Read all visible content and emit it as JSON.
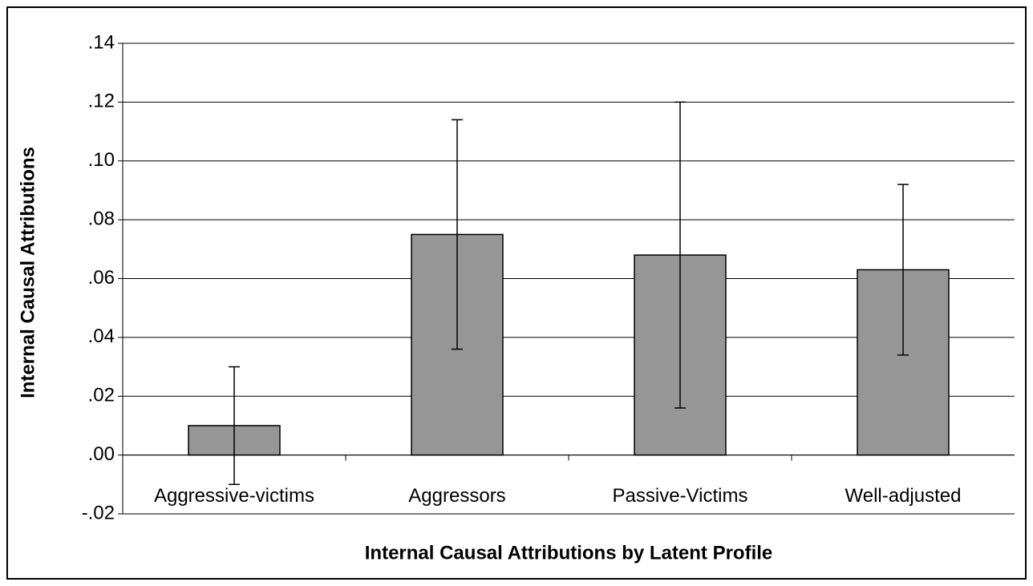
{
  "chart_data": {
    "type": "bar",
    "x_label": "Internal Causal Attributions by Latent Profile",
    "y_label": "Internal Causal Attributions",
    "categories": [
      "Aggressive-victims",
      "Aggressors",
      "Passive-Victims",
      "Well-adjusted"
    ],
    "values": [
      0.01,
      0.075,
      0.068,
      0.063
    ],
    "errors": [
      0.02,
      0.039,
      0.052,
      0.029
    ],
    "color": "#969696",
    "ylim": [
      -0.02,
      0.14
    ],
    "yticks": [
      {
        "value": -0.02,
        "label": "-.02"
      },
      {
        "value": 0,
        "label": ".00"
      },
      {
        "value": 0.02,
        "label": ".02"
      },
      {
        "value": 0.04,
        "label": ".04"
      },
      {
        "value": 0.06,
        "label": ".06"
      },
      {
        "value": 0.08,
        "label": ".08"
      },
      {
        "value": 0.1,
        "label": ".10"
      },
      {
        "value": 0.12,
        "label": ".12"
      },
      {
        "value": 0.14,
        "label": ".14"
      }
    ],
    "grid": true
  }
}
